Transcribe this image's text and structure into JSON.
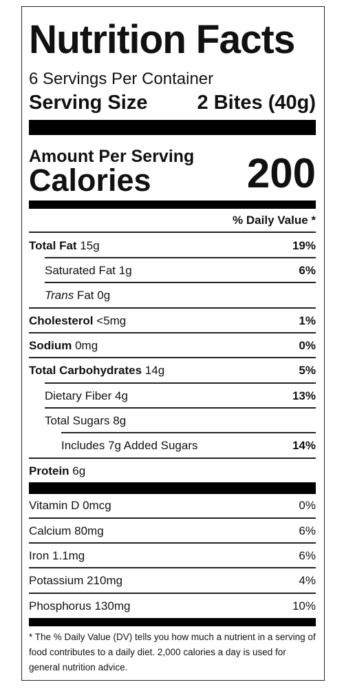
{
  "title": "Nutrition Facts",
  "servings_per_container": "6 Servings Per Container",
  "serving_size": {
    "label": "Serving Size",
    "value": "2 Bites (40g)"
  },
  "amount_per_serving": "Amount Per Serving",
  "calories": {
    "label": "Calories",
    "value": "200"
  },
  "daily_value_header": "% Daily Value *",
  "nutrients": [
    {
      "name": "Total Fat",
      "amount": "15g",
      "dv": "19%",
      "bold_name": true,
      "indent": 0
    },
    {
      "name": "Saturated Fat",
      "amount": "1g",
      "dv": "6%",
      "bold_name": false,
      "indent": 1
    },
    {
      "name": "Trans",
      "name_suffix": "Fat",
      "amount": "0g",
      "dv": "",
      "bold_name": false,
      "indent": 1
    },
    {
      "name": "Cholesterol",
      "amount": "<5mg",
      "dv": "1%",
      "bold_name": true,
      "indent": 0
    },
    {
      "name": "Sodium",
      "amount": "0mg",
      "dv": "0%",
      "bold_name": true,
      "indent": 0
    },
    {
      "name": "Total Carbohydrates",
      "amount": "14g",
      "dv": "5%",
      "bold_name": true,
      "indent": 0
    },
    {
      "name": "Dietary Fiber",
      "amount": "4g",
      "dv": "13%",
      "bold_name": false,
      "indent": 1
    },
    {
      "name": "Total Sugars",
      "amount": "8g",
      "dv": "",
      "bold_name": false,
      "indent": 1
    },
    {
      "name": "Includes 7g Added Sugars",
      "amount": "",
      "dv": "14%",
      "bold_name": false,
      "indent": 2
    },
    {
      "name": "Protein",
      "amount": "6g",
      "dv": "",
      "bold_name": true,
      "indent": 0
    }
  ],
  "vitamins": [
    {
      "name": "Vitamin D 0mcg",
      "dv": "0%"
    },
    {
      "name": "Calcium 80mg",
      "dv": "6%"
    },
    {
      "name": "Iron 1.1mg",
      "dv": "6%"
    },
    {
      "name": "Potassium 210mg",
      "dv": "4%"
    },
    {
      "name": "Phosphorus 130mg",
      "dv": "10%"
    }
  ],
  "footnote": "* The % Daily Value (DV) tells you how much a nutrient in a serving of food contributes to a daily diet. 2,000 calories a day is used for general nutrition advice."
}
